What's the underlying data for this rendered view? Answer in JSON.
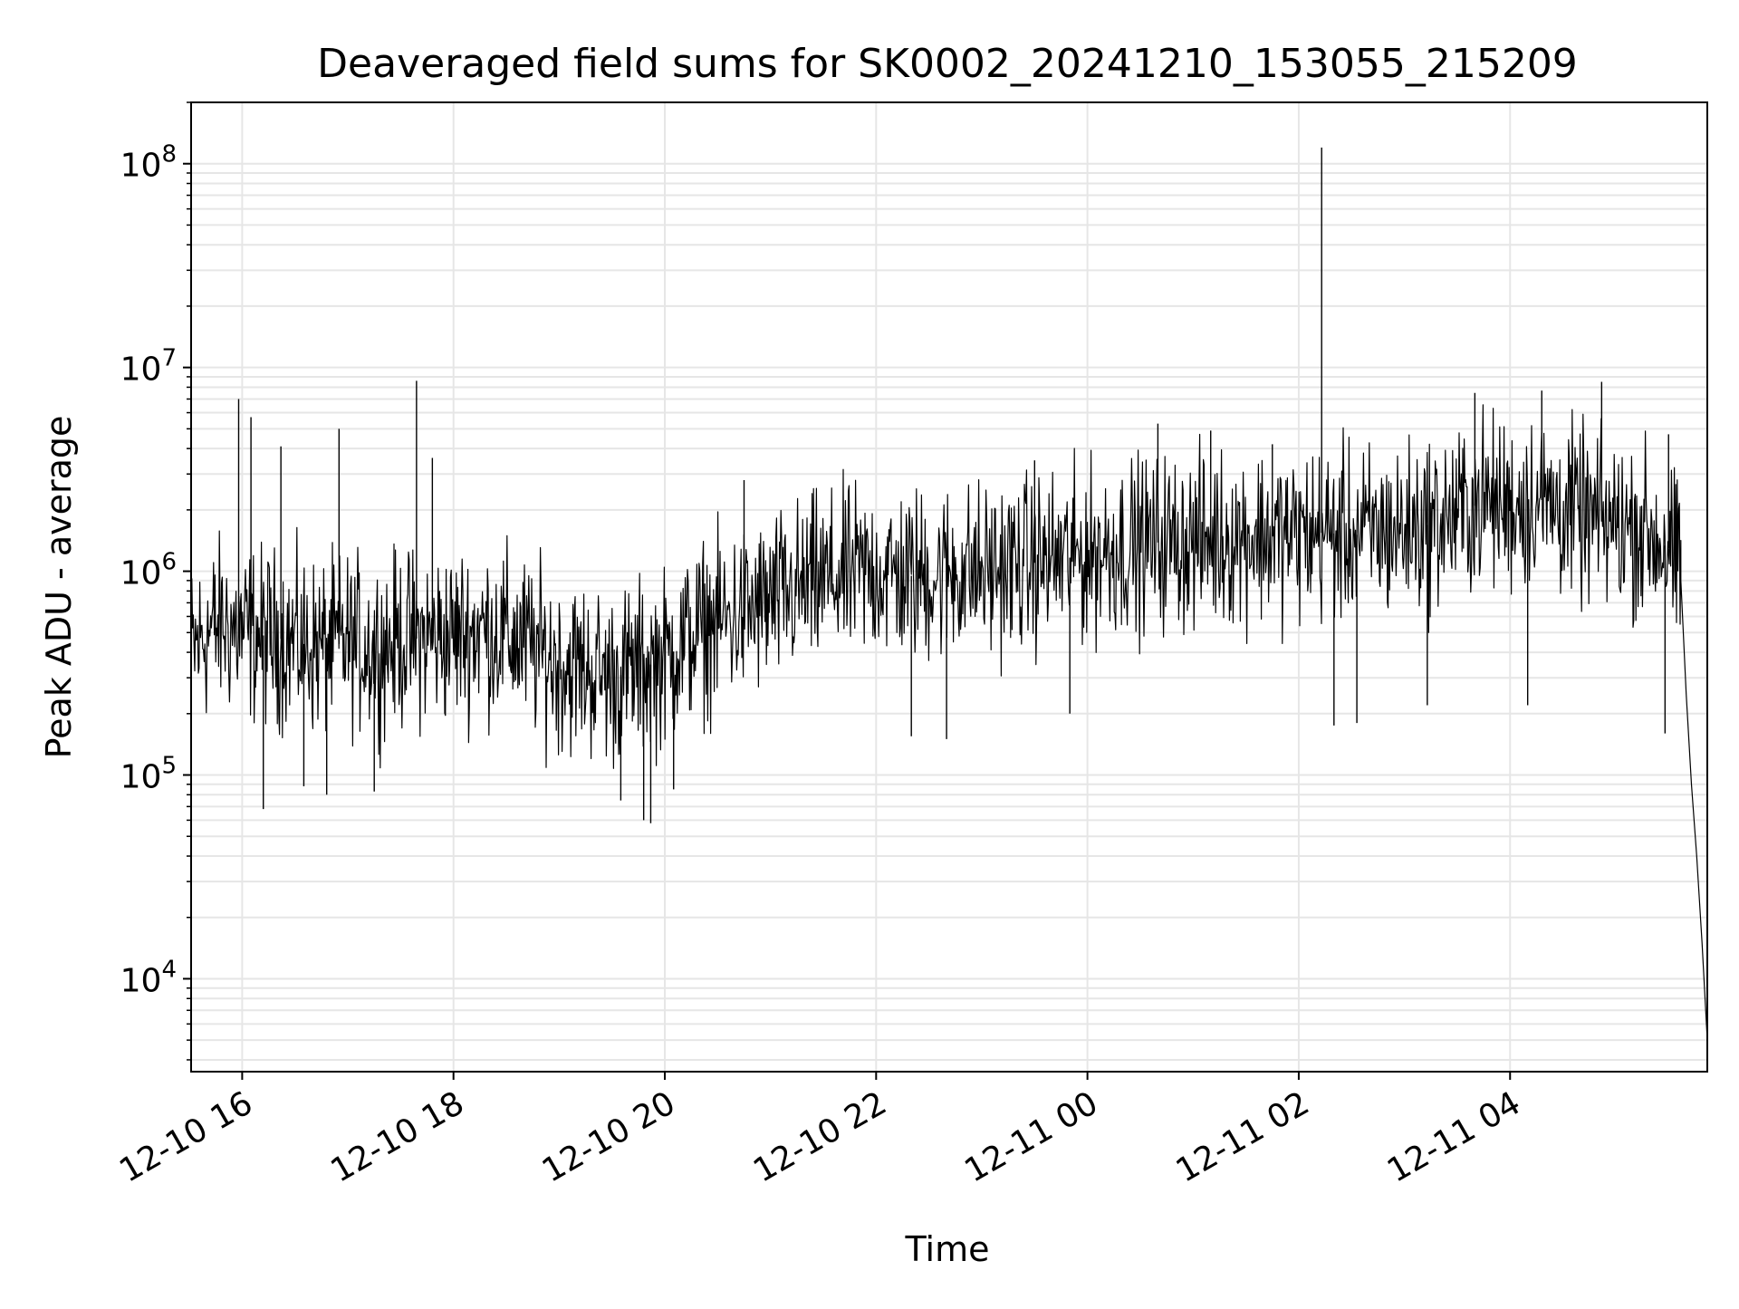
{
  "chart_data": {
    "type": "line",
    "title": "Deaveraged field sums for SK0002_20241210_153055_215209",
    "xlabel": "Time",
    "ylabel": "Peak ADU - average",
    "yscale": "log",
    "ylim": [
      3500,
      200000000
    ],
    "xlim": [
      "2024-12-10 15:31",
      "2024-12-11 05:52"
    ],
    "grid": true,
    "x_ticks": [
      {
        "label": "12-10 16",
        "time": "2024-12-10 16:00"
      },
      {
        "label": "12-10 18",
        "time": "2024-12-10 18:00"
      },
      {
        "label": "12-10 20",
        "time": "2024-12-10 20:00"
      },
      {
        "label": "12-10 22",
        "time": "2024-12-10 22:00"
      },
      {
        "label": "12-11 00",
        "time": "2024-12-11 00:00"
      },
      {
        "label": "12-11 02",
        "time": "2024-12-11 02:00"
      },
      {
        "label": "12-11 04",
        "time": "2024-12-11 04:00"
      }
    ],
    "y_ticks": [
      {
        "base": "10",
        "exp": "4",
        "value": 10000
      },
      {
        "base": "10",
        "exp": "5",
        "value": 100000
      },
      {
        "base": "10",
        "exp": "6",
        "value": 1000000
      },
      {
        "base": "10",
        "exp": "7",
        "value": 10000000
      },
      {
        "base": "10",
        "exp": "8",
        "value": 100000000
      }
    ],
    "series": [
      {
        "color": "#000000",
        "x": [
          "2024-12-10 15:31",
          "2024-12-10 15:40",
          "2024-12-10 15:50",
          "2024-12-10 16:00",
          "2024-12-10 16:15",
          "2024-12-10 16:30",
          "2024-12-10 16:45",
          "2024-12-10 17:00",
          "2024-12-10 17:15",
          "2024-12-10 17:30",
          "2024-12-10 17:45",
          "2024-12-10 18:00",
          "2024-12-10 18:15",
          "2024-12-10 18:30",
          "2024-12-10 18:45",
          "2024-12-10 19:00",
          "2024-12-10 19:15",
          "2024-12-10 19:30",
          "2024-12-10 19:45",
          "2024-12-10 20:00",
          "2024-12-10 20:15",
          "2024-12-10 20:30",
          "2024-12-10 20:45",
          "2024-12-10 21:00",
          "2024-12-10 21:15",
          "2024-12-10 21:30",
          "2024-12-10 21:45",
          "2024-12-10 22:00",
          "2024-12-10 22:15",
          "2024-12-10 22:30",
          "2024-12-10 22:45",
          "2024-12-10 23:00",
          "2024-12-10 23:15",
          "2024-12-10 23:30",
          "2024-12-10 23:45",
          "2024-12-11 00:00",
          "2024-12-11 00:15",
          "2024-12-11 00:30",
          "2024-12-11 00:45",
          "2024-12-11 01:00",
          "2024-12-11 01:15",
          "2024-12-11 01:30",
          "2024-12-11 01:45",
          "2024-12-11 02:00",
          "2024-12-11 02:15",
          "2024-12-11 02:30",
          "2024-12-11 02:45",
          "2024-12-11 03:00",
          "2024-12-11 03:15",
          "2024-12-11 03:30",
          "2024-12-11 03:45",
          "2024-12-11 04:00",
          "2024-12-11 04:15",
          "2024-12-11 04:30",
          "2024-12-11 04:45",
          "2024-12-11 05:00",
          "2024-12-11 05:15",
          "2024-12-11 05:30",
          "2024-12-11 05:37",
          "2024-12-11 05:40",
          "2024-12-11 05:43",
          "2024-12-11 05:46",
          "2024-12-11 05:49",
          "2024-12-11 05:52"
        ],
        "values": [
          400000,
          500000,
          550000,
          500000,
          480000,
          450000,
          420000,
          450000,
          420000,
          460000,
          470000,
          480000,
          520000,
          480000,
          420000,
          350000,
          330000,
          300000,
          330000,
          370000,
          480000,
          560000,
          620000,
          700000,
          800000,
          900000,
          950000,
          1000000,
          950000,
          950000,
          1000000,
          1000000,
          1050000,
          1100000,
          1150000,
          1200000,
          1300000,
          1350000,
          1400000,
          1400000,
          1450000,
          1500000,
          1500000,
          1500000,
          1550000,
          1500000,
          1550000,
          1600000,
          1700000,
          1900000,
          2200000,
          2100000,
          2300000,
          2000000,
          1800000,
          1700000,
          1600000,
          1300000,
          900000,
          250000,
          90000,
          40000,
          15000,
          5000
        ]
      }
    ],
    "spikes": [
      {
        "x": "2024-12-10 15:58",
        "y": 7000000
      },
      {
        "x": "2024-12-10 16:05",
        "y": 5700000
      },
      {
        "x": "2024-12-10 16:22",
        "y": 4100000
      },
      {
        "x": "2024-12-10 16:55",
        "y": 5000000
      },
      {
        "x": "2024-12-10 17:39",
        "y": 8600000
      },
      {
        "x": "2024-12-10 17:48",
        "y": 3600000
      },
      {
        "x": "2024-12-10 20:45",
        "y": 2800000
      },
      {
        "x": "2024-12-10 23:30",
        "y": 3500000
      },
      {
        "x": "2024-12-11 00:40",
        "y": 5300000
      },
      {
        "x": "2024-12-11 01:10",
        "y": 4900000
      },
      {
        "x": "2024-12-11 01:45",
        "y": 4200000
      },
      {
        "x": "2024-12-11 02:13",
        "y": 120000000
      },
      {
        "x": "2024-12-11 03:40",
        "y": 7500000
      },
      {
        "x": "2024-12-11 04:18",
        "y": 7700000
      },
      {
        "x": "2024-12-11 04:52",
        "y": 8500000
      },
      {
        "x": "2024-12-11 05:30",
        "y": 4700000
      }
    ],
    "dips": [
      {
        "x": "2024-12-10 16:12",
        "y": 68000
      },
      {
        "x": "2024-12-10 16:35",
        "y": 88000
      },
      {
        "x": "2024-12-10 16:48",
        "y": 80000
      },
      {
        "x": "2024-12-10 17:15",
        "y": 83000
      },
      {
        "x": "2024-12-10 19:35",
        "y": 75000
      },
      {
        "x": "2024-12-10 19:48",
        "y": 60000
      },
      {
        "x": "2024-12-10 19:52",
        "y": 58000
      },
      {
        "x": "2024-12-10 20:05",
        "y": 85000
      },
      {
        "x": "2024-12-10 22:20",
        "y": 155000
      },
      {
        "x": "2024-12-10 22:40",
        "y": 150000
      },
      {
        "x": "2024-12-10 23:50",
        "y": 200000
      },
      {
        "x": "2024-12-11 02:20",
        "y": 175000
      },
      {
        "x": "2024-12-11 02:33",
        "y": 180000
      },
      {
        "x": "2024-12-11 03:13",
        "y": 220000
      },
      {
        "x": "2024-12-11 04:10",
        "y": 220000
      },
      {
        "x": "2024-12-11 05:28",
        "y": 160000
      }
    ]
  }
}
